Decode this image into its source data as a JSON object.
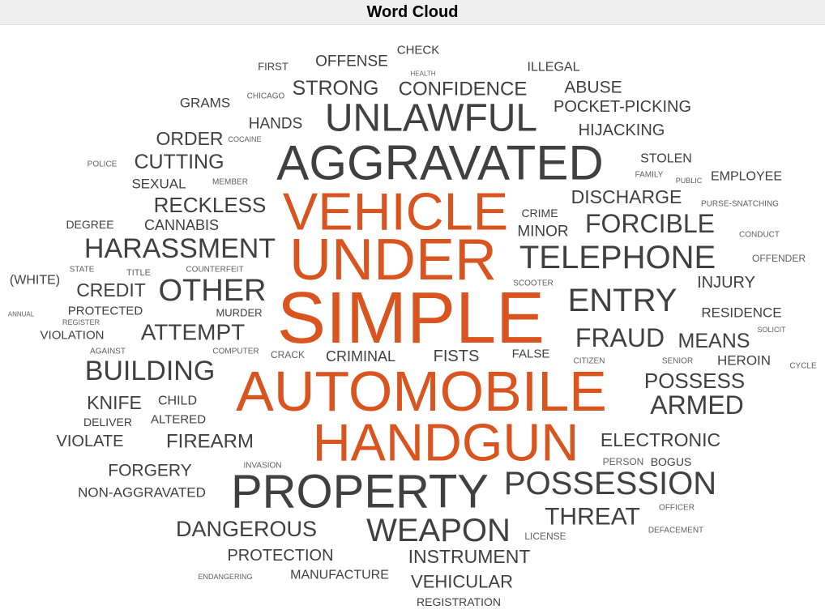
{
  "chart_data": {
    "type": "wordcloud",
    "title": "Word Cloud",
    "colors": {
      "highlight": "#d9541e",
      "normal": "#404040",
      "small": "#606060"
    },
    "words": [
      {
        "text": "SIMPLE",
        "weight": 100,
        "highlight": true
      },
      {
        "text": "UNDER",
        "weight": 88,
        "highlight": true
      },
      {
        "text": "AUTOMOBILE",
        "weight": 86,
        "highlight": true
      },
      {
        "text": "VEHICLE",
        "weight": 80,
        "highlight": true
      },
      {
        "text": "HANDGUN",
        "weight": 80,
        "highlight": true
      },
      {
        "text": "AGGRAVATED",
        "weight": 74,
        "highlight": false
      },
      {
        "text": "PROPERTY",
        "weight": 70,
        "highlight": false
      },
      {
        "text": "UNLAWFUL",
        "weight": 58,
        "highlight": false
      },
      {
        "text": "TELEPHONE",
        "weight": 48,
        "highlight": false
      },
      {
        "text": "POSSESSION",
        "weight": 47,
        "highlight": false
      },
      {
        "text": "WEAPON",
        "weight": 47,
        "highlight": false
      },
      {
        "text": "ENTRY",
        "weight": 46,
        "highlight": false
      },
      {
        "text": "OTHER",
        "weight": 45,
        "highlight": false
      },
      {
        "text": "HARASSMENT",
        "weight": 39,
        "highlight": false
      },
      {
        "text": "BUILDING",
        "weight": 38,
        "highlight": false
      },
      {
        "text": "FORCIBLE",
        "weight": 36,
        "highlight": false
      },
      {
        "text": "FRAUD",
        "weight": 36,
        "highlight": false
      },
      {
        "text": "ARMED",
        "weight": 36,
        "highlight": false
      },
      {
        "text": "THREAT",
        "weight": 32,
        "highlight": false
      },
      {
        "text": "ATTEMPT",
        "weight": 30,
        "highlight": false
      },
      {
        "text": "DANGEROUS",
        "weight": 29,
        "highlight": false
      },
      {
        "text": "RECKLESS",
        "weight": 28,
        "highlight": false
      },
      {
        "text": "POSSESS",
        "weight": 28,
        "highlight": false
      },
      {
        "text": "STRONG",
        "weight": 27,
        "highlight": false
      },
      {
        "text": "CUTTING",
        "weight": 27,
        "highlight": false
      },
      {
        "text": "MEANS",
        "weight": 27,
        "highlight": false
      },
      {
        "text": "CONFIDENCE",
        "weight": 26,
        "highlight": false
      },
      {
        "text": "FIREARM",
        "weight": 26,
        "highlight": false
      },
      {
        "text": "CREDIT",
        "weight": 25,
        "highlight": false
      },
      {
        "text": "KNIFE",
        "weight": 25,
        "highlight": false
      },
      {
        "text": "INSTRUMENT",
        "weight": 25,
        "highlight": false
      },
      {
        "text": "DISCHARGE",
        "weight": 24,
        "highlight": false
      },
      {
        "text": "ORDER",
        "weight": 24,
        "highlight": false
      },
      {
        "text": "ELECTRONIC",
        "weight": 24,
        "highlight": false
      },
      {
        "text": "VEHICULAR",
        "weight": 23,
        "highlight": false
      },
      {
        "text": "ABUSE",
        "weight": 22,
        "highlight": false
      },
      {
        "text": "FORGERY",
        "weight": 22,
        "highlight": false
      },
      {
        "text": "HIJACKING",
        "weight": 21,
        "highlight": false
      },
      {
        "text": "POCKET-PICKING",
        "weight": 21,
        "highlight": false
      },
      {
        "text": "PROTECTION",
        "weight": 21,
        "highlight": false
      },
      {
        "text": "INJURY",
        "weight": 21,
        "highlight": false
      },
      {
        "text": "FISTS",
        "weight": 21,
        "highlight": false
      },
      {
        "text": "VIOLATE",
        "weight": 21,
        "highlight": false
      },
      {
        "text": "MINOR",
        "weight": 20,
        "highlight": false
      },
      {
        "text": "OFFENSE",
        "weight": 20,
        "highlight": false
      },
      {
        "text": "HANDS",
        "weight": 20,
        "highlight": false
      },
      {
        "text": "CANNABIS",
        "weight": 19,
        "highlight": false
      },
      {
        "text": "CRIMINAL",
        "weight": 19,
        "highlight": false
      },
      {
        "text": "RESIDENCE",
        "weight": 18,
        "highlight": false
      },
      {
        "text": "GRAMS",
        "weight": 18,
        "highlight": false
      },
      {
        "text": "SEXUAL",
        "weight": 18,
        "highlight": false
      },
      {
        "text": "HEROIN",
        "weight": 18,
        "highlight": false
      },
      {
        "text": "NON-AGGRAVATED",
        "weight": 18,
        "highlight": false
      },
      {
        "text": "(WHITE)",
        "weight": 17,
        "highlight": false
      },
      {
        "text": "MANUFACTURE",
        "weight": 17,
        "highlight": false
      },
      {
        "text": "EMPLOYEE",
        "weight": 17,
        "highlight": false
      },
      {
        "text": "STOLEN",
        "weight": 17,
        "highlight": false
      },
      {
        "text": "ILLEGAL",
        "weight": 17,
        "highlight": false
      },
      {
        "text": "CHILD",
        "weight": 17,
        "highlight": false
      },
      {
        "text": "VIOLATION",
        "weight": 16,
        "highlight": false
      },
      {
        "text": "PROTECTED",
        "weight": 16,
        "highlight": false
      },
      {
        "text": "CHECK",
        "weight": 16,
        "highlight": false
      },
      {
        "text": "FALSE",
        "weight": 16,
        "highlight": false
      },
      {
        "text": "ALTERED",
        "weight": 16,
        "highlight": false
      },
      {
        "text": "DELIVER",
        "weight": 15,
        "highlight": false
      },
      {
        "text": "REGISTRATION",
        "weight": 15,
        "highlight": false
      },
      {
        "text": "DEGREE",
        "weight": 15,
        "highlight": false
      },
      {
        "text": "CRIME",
        "weight": 15,
        "highlight": false
      },
      {
        "text": "BOGUS",
        "weight": 15,
        "highlight": false
      },
      {
        "text": "MURDER",
        "weight": 14,
        "highlight": false
      },
      {
        "text": "FIRST",
        "weight": 14,
        "highlight": false
      },
      {
        "text": "LICENSE",
        "weight": 13,
        "highlight": false
      },
      {
        "text": "CRACK",
        "weight": 13,
        "highlight": false
      },
      {
        "text": "PERSON",
        "weight": 13,
        "highlight": false
      },
      {
        "text": "OFFENDER",
        "weight": 13,
        "highlight": false
      },
      {
        "text": "TITLE",
        "weight": 12,
        "highlight": false
      },
      {
        "text": "SCOOTER",
        "weight": 11,
        "highlight": false
      },
      {
        "text": "COUNTERFEIT",
        "weight": 11,
        "highlight": false
      },
      {
        "text": "STATE",
        "weight": 11,
        "highlight": false
      },
      {
        "text": "COMPUTER",
        "weight": 11,
        "highlight": false
      },
      {
        "text": "AGAINST",
        "weight": 11,
        "highlight": false
      },
      {
        "text": "PURSE-SNATCHING",
        "weight": 11,
        "highlight": false
      },
      {
        "text": "CONDUCT",
        "weight": 11,
        "highlight": false
      },
      {
        "text": "OFFICER",
        "weight": 11,
        "highlight": false
      },
      {
        "text": "CHICAGO",
        "weight": 11,
        "highlight": false
      },
      {
        "text": "MEMBER",
        "weight": 11,
        "highlight": false
      },
      {
        "text": "POLICE",
        "weight": 11,
        "highlight": false
      },
      {
        "text": "FAMILY",
        "weight": 11,
        "highlight": false
      },
      {
        "text": "CITIZEN",
        "weight": 11,
        "highlight": false
      },
      {
        "text": "SENIOR",
        "weight": 11,
        "highlight": false
      },
      {
        "text": "CYCLE",
        "weight": 11,
        "highlight": false
      },
      {
        "text": "INVASION",
        "weight": 11,
        "highlight": false
      },
      {
        "text": "DEFACEMENT",
        "weight": 11,
        "highlight": false
      },
      {
        "text": "COCAINE",
        "weight": 10,
        "highlight": false
      },
      {
        "text": "PUBLIC",
        "weight": 10,
        "highlight": false
      },
      {
        "text": "SOLICIT",
        "weight": 10,
        "highlight": false
      },
      {
        "text": "ENDANGERING",
        "weight": 10,
        "highlight": false
      },
      {
        "text": "REGISTER",
        "weight": 10,
        "highlight": false
      },
      {
        "text": "ANNUAL",
        "weight": 10,
        "highlight": false
      },
      {
        "text": "HEALTH",
        "weight": 9,
        "highlight": false
      }
    ]
  }
}
